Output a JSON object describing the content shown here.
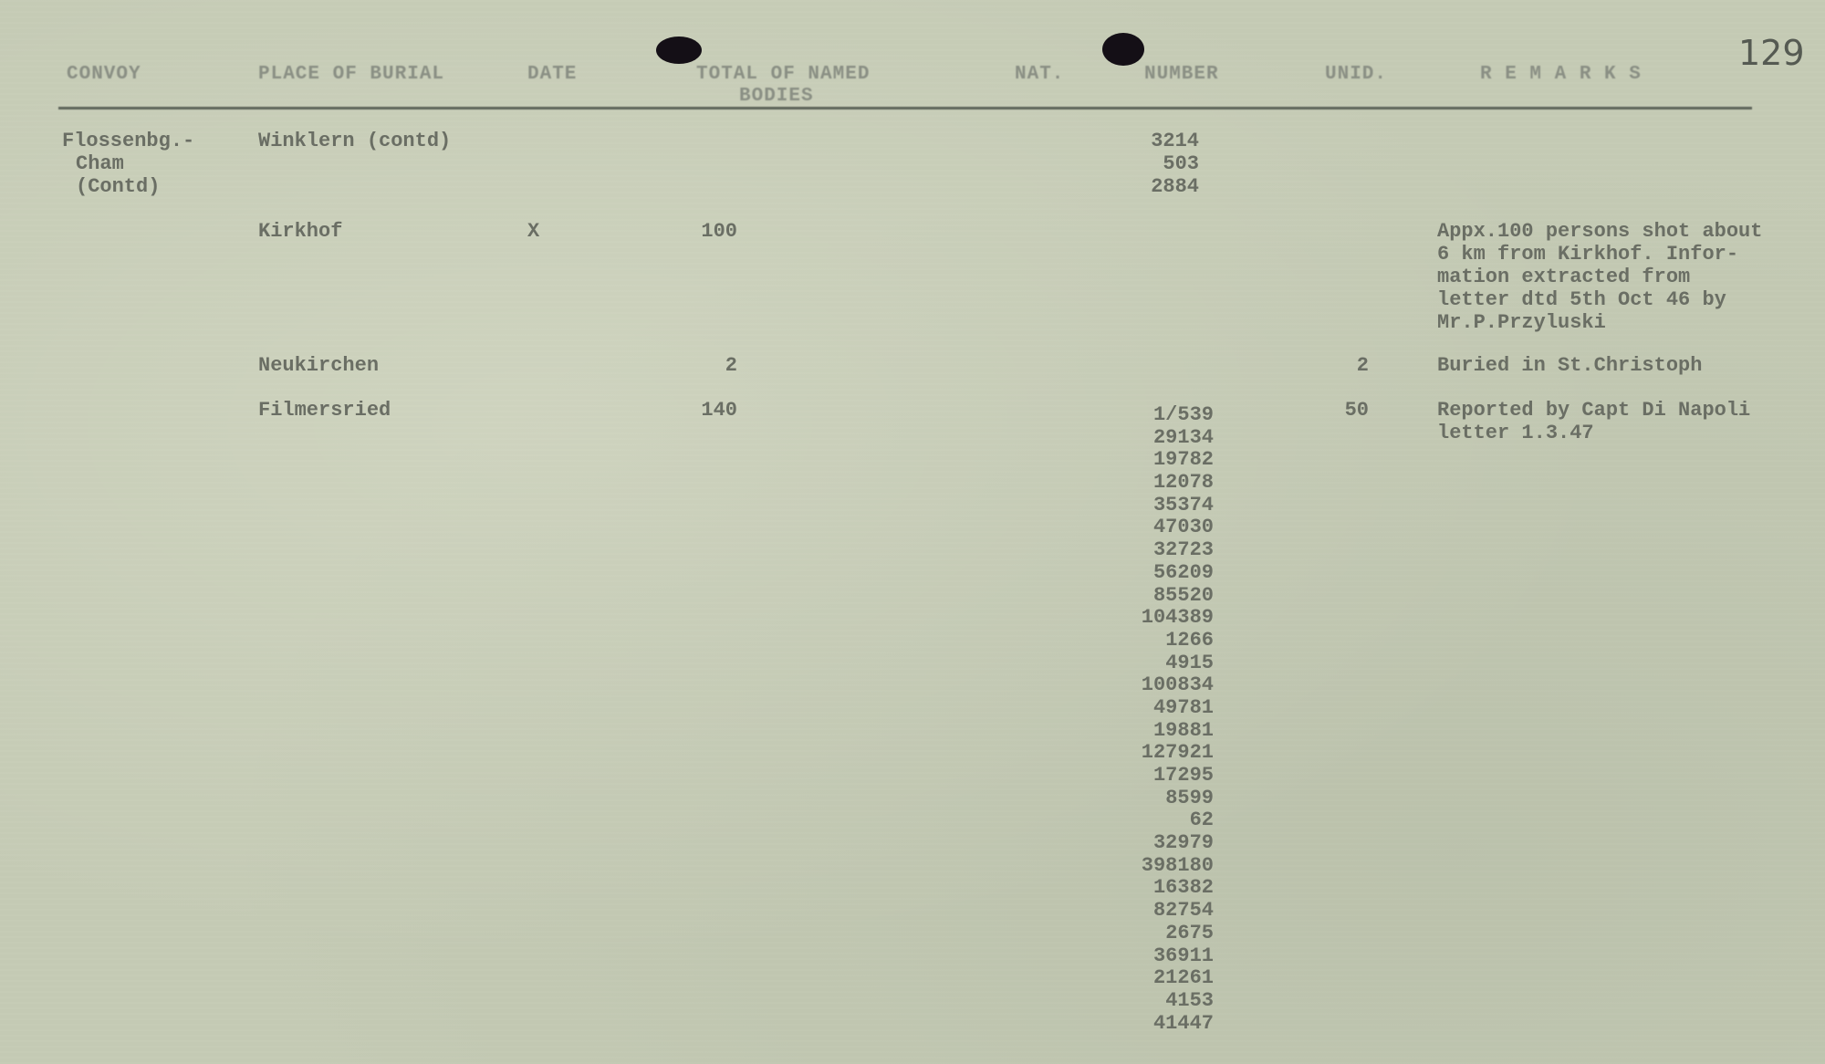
{
  "page_number": "129",
  "headers": {
    "convoy": "CONVOY",
    "place": "PLACE OF BURIAL",
    "date": "DATE",
    "total_line1": "TOTAL OF NAMED",
    "total_line2": "BODIES",
    "nat": "NAT.",
    "number": "NUMBER",
    "unid": "UNID.",
    "remarks": "R E M A R K S"
  },
  "convoy": [
    "Flossenbg.-",
    "Cham",
    "(Contd)"
  ],
  "rows": [
    {
      "place": "Winklern (contd)",
      "numbers": [
        "3214",
        "503",
        "2884"
      ]
    },
    {
      "place": "Kirkhof",
      "date": "X",
      "total": "100",
      "remarks": [
        "Appx.100 persons shot about",
        "6 km from Kirkhof. Infor-",
        "mation extracted from",
        "letter dtd 5th Oct 46 by",
        "Mr.P.Przyluski"
      ]
    },
    {
      "place": "Neukirchen",
      "total": "2",
      "unid": "2",
      "remarks": [
        "Buried in St.Christoph"
      ]
    },
    {
      "place": "Filmersried",
      "total": "140",
      "unid": "50",
      "remarks": [
        "Reported by Capt Di Napoli",
        "letter 1.3.47"
      ],
      "numbers": [
        "1/539",
        "29134",
        "19782",
        "12078",
        "35374",
        "47030",
        "32723",
        "56209",
        "85520",
        "104389",
        "1266",
        "4915",
        "100834",
        "49781",
        "19881",
        "127921",
        "17295",
        "8599",
        "62",
        "32979",
        "398180",
        "16382",
        "82754",
        "2675",
        "36911",
        "21261",
        "4153",
        "41447"
      ]
    }
  ]
}
